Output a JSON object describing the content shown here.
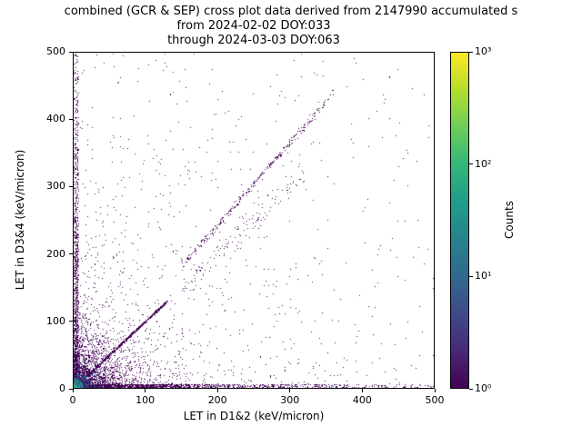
{
  "chart_data": {
    "type": "heatmap",
    "title_lines": [
      "combined (GCR & SEP) cross plot data derived from 2147990 accumulated s",
      "from 2024-02-02 DOY:033",
      "through 2024-03-03 DOY:063"
    ],
    "xlabel": "LET in D1&2 (keV/micron)",
    "ylabel": "LET in D3&4 (keV/micron)",
    "xlim": [
      0,
      500
    ],
    "ylim": [
      0,
      500
    ],
    "x_ticks": [
      "0",
      "100",
      "200",
      "300",
      "400",
      "500"
    ],
    "y_ticks": [
      "0",
      "100",
      "200",
      "300",
      "400",
      "500"
    ],
    "grid": false,
    "colorbar": {
      "label": "Counts",
      "scale": "log",
      "range": [
        1,
        1000
      ],
      "colormap": "viridis",
      "tick_labels": [
        "10⁰",
        "10¹",
        "10²",
        "10³"
      ]
    },
    "palette": {
      "purple": "#440154",
      "indigo": "#46327e",
      "blue": "#365c8d",
      "teal": "#1fa187",
      "green": "#4ac16d",
      "yellow": "#fde725"
    },
    "distribution": {
      "seed": 42,
      "components": [
        {
          "name": "origin-hotspot",
          "type": "exp2d",
          "scale_x": 6,
          "scale_y": 6,
          "count": 2600
        },
        {
          "name": "origin-halo",
          "type": "exp2d",
          "scale_x": 30,
          "scale_y": 30,
          "count": 2200
        },
        {
          "name": "identity-diagonal",
          "type": "diag",
          "x0": 0,
          "x1": 130,
          "slope": 1.0,
          "spread": 2,
          "count": 900
        },
        {
          "name": "mid-diagonal-cloud",
          "type": "diag",
          "x0": 150,
          "x1": 320,
          "slope": 1.0,
          "spread": 18,
          "count": 120
        },
        {
          "name": "upper-diagonal",
          "type": "diag",
          "x0": 150,
          "x1": 360,
          "slope": 1.22,
          "spread": 6,
          "count": 300
        },
        {
          "name": "x-axis-band",
          "type": "band_x",
          "x_scale": 150,
          "y_spread": 6,
          "count": 1600
        },
        {
          "name": "y-axis-band",
          "type": "band_y",
          "y_scale": 220,
          "x_spread": 6,
          "count": 1200
        },
        {
          "name": "sparse-background",
          "type": "bg",
          "x_scale": 180,
          "y_scale": 180,
          "count": 800
        },
        {
          "name": "uniform-sprinkle",
          "type": "uniform",
          "count": 220
        }
      ]
    }
  }
}
